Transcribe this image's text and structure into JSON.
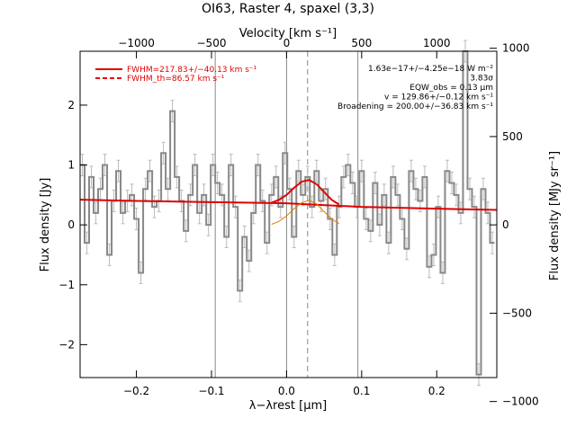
{
  "chart_data": {
    "type": "line",
    "title": "OI63, Raster 4, spaxel (3,3)",
    "xlabel": "λ−λrest [μm]",
    "ylabel_left": "Flux density [Jy]",
    "ylabel_right": "Flux density [MJy sr⁻¹]",
    "xlabel_top": "Velocity [km s⁻¹]",
    "xlim": [
      -0.275,
      0.28
    ],
    "ylim": [
      -2.55,
      2.9
    ],
    "x_ticks": [
      -0.2,
      -0.1,
      0.0,
      0.1,
      0.2
    ],
    "x_tick_labels": [
      "−0.2",
      "−0.1",
      "0.0",
      "0.1",
      "0.2"
    ],
    "y_ticks": [
      -2,
      -1,
      0,
      1,
      2
    ],
    "y_tick_labels": [
      "−2",
      "−1",
      "0",
      "1",
      "2"
    ],
    "top_ticks_kms": [
      -1000,
      -500,
      0,
      500,
      1000
    ],
    "top_tick_labels": [
      "−1000",
      "−500",
      "0",
      "500",
      "1000"
    ],
    "right_ticks_mjy": [
      -1000,
      -500,
      0,
      500,
      1000
    ],
    "right_tick_labels": [
      "−1000",
      "−500",
      "0",
      "500",
      "1000"
    ],
    "vertical_lines": [
      -0.095,
      0.0,
      0.095
    ],
    "dashed_line": 0.028,
    "legend": {
      "position": "top-left",
      "entries": [
        {
          "label": "FWHM=217.83+/−40.13 km s⁻¹",
          "style": "solid",
          "color": "#e00000"
        },
        {
          "label": "FWHM_th=86.57 km s⁻¹",
          "style": "dashed",
          "color": "#e00000"
        }
      ]
    },
    "annotations": [
      "1.63e−17+/−4.25e−18 W m⁻²",
      "3.83σ",
      "EQW_obs = 0.13 μm",
      "v = 129.86+/−0.12 km s⁻¹",
      "Broadening = 200.00+/−36.83 km s⁻¹"
    ],
    "series": [
      {
        "name": "spectrum",
        "style": "step",
        "color": "#888888",
        "x": [
          -0.272,
          -0.266,
          -0.26,
          -0.254,
          -0.248,
          -0.242,
          -0.236,
          -0.23,
          -0.224,
          -0.218,
          -0.212,
          -0.206,
          -0.2,
          -0.194,
          -0.188,
          -0.182,
          -0.176,
          -0.17,
          -0.164,
          -0.158,
          -0.152,
          -0.146,
          -0.14,
          -0.134,
          -0.128,
          -0.122,
          -0.116,
          -0.11,
          -0.104,
          -0.098,
          -0.092,
          -0.086,
          -0.08,
          -0.074,
          -0.068,
          -0.062,
          -0.056,
          -0.05,
          -0.044,
          -0.038,
          -0.032,
          -0.026,
          -0.02,
          -0.014,
          -0.008,
          -0.002,
          0.004,
          0.01,
          0.016,
          0.022,
          0.028,
          0.034,
          0.04,
          0.046,
          0.052,
          0.058,
          0.064,
          0.07,
          0.076,
          0.082,
          0.088,
          0.094,
          0.1,
          0.106,
          0.112,
          0.118,
          0.124,
          0.13,
          0.136,
          0.142,
          0.148,
          0.154,
          0.16,
          0.166,
          0.172,
          0.178,
          0.184,
          0.19,
          0.196,
          0.202,
          0.208,
          0.214,
          0.22,
          0.226,
          0.232,
          0.238,
          0.244,
          0.25,
          0.256,
          0.262,
          0.268,
          0.274
        ],
        "y": [
          1.0,
          -0.3,
          0.8,
          0.2,
          0.6,
          1.0,
          -0.5,
          0.4,
          0.9,
          0.2,
          0.4,
          0.5,
          0.1,
          -0.8,
          0.6,
          0.9,
          0.3,
          0.4,
          1.2,
          0.6,
          1.9,
          0.8,
          0.4,
          -0.1,
          0.5,
          1.0,
          0.2,
          0.5,
          0.0,
          1.0,
          0.7,
          0.5,
          -0.2,
          1.0,
          0.3,
          -1.1,
          -0.2,
          -0.6,
          0.2,
          1.0,
          0.4,
          -0.3,
          0.5,
          0.8,
          0.3,
          1.2,
          0.6,
          -0.2,
          0.9,
          0.5,
          0.8,
          0.3,
          0.9,
          0.4,
          0.6,
          0.1,
          -0.5,
          0.3,
          0.8,
          1.0,
          0.7,
          0.3,
          0.9,
          0.1,
          -0.1,
          0.7,
          0.0,
          0.5,
          -0.3,
          0.8,
          0.5,
          0.1,
          -0.4,
          0.9,
          0.6,
          0.4,
          0.8,
          -0.7,
          -0.5,
          0.3,
          -0.8,
          0.9,
          0.7,
          0.5,
          0.2,
          2.9,
          0.6,
          0.3,
          -2.5,
          0.6,
          0.2,
          -0.3
        ]
      },
      {
        "name": "continuum",
        "style": "solid",
        "color": "#e00000",
        "x": [
          -0.275,
          -0.2,
          -0.1,
          0.0,
          0.1,
          0.2,
          0.28
        ],
        "y": [
          0.42,
          0.4,
          0.38,
          0.36,
          0.3,
          0.27,
          0.25
        ]
      },
      {
        "name": "total_fit",
        "style": "solid",
        "color": "#e00000",
        "x": [
          -0.02,
          -0.01,
          0.0,
          0.01,
          0.02,
          0.03,
          0.04,
          0.05,
          0.06,
          0.07
        ],
        "y": [
          0.37,
          0.42,
          0.5,
          0.62,
          0.72,
          0.75,
          0.68,
          0.55,
          0.42,
          0.34
        ]
      },
      {
        "name": "gaussian_component",
        "style": "solid",
        "color": "#e08000",
        "x": [
          -0.02,
          -0.01,
          0.0,
          0.01,
          0.02,
          0.03,
          0.04,
          0.05,
          0.06,
          0.07
        ],
        "y": [
          0.01,
          0.06,
          0.15,
          0.27,
          0.37,
          0.41,
          0.35,
          0.22,
          0.1,
          0.02
        ]
      }
    ]
  }
}
